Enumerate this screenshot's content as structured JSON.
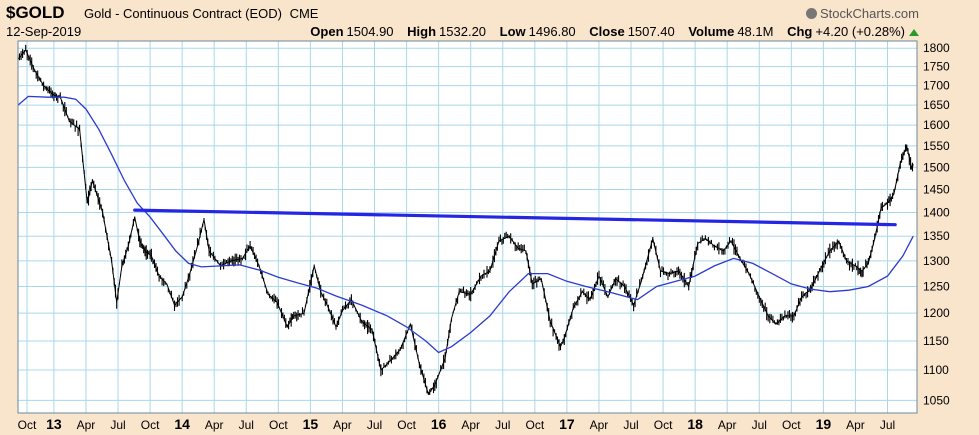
{
  "header": {
    "symbol": "$GOLD",
    "description": "Gold - Continuous Contract (EOD)",
    "exchange": "CME",
    "date": "12-Sep-2019",
    "brand": "StockCharts.com",
    "open_label": "Open",
    "open": "1504.90",
    "high_label": "High",
    "high": "1532.20",
    "low_label": "Low",
    "low": "1496.80",
    "close_label": "Close",
    "close": "1507.40",
    "volume_label": "Volume",
    "volume": "48.1M",
    "chg_label": "Chg",
    "chg": "+4.20 (+0.28%)"
  },
  "colors": {
    "background": "#f9e4cc",
    "plot": "#ffffff",
    "grid": "#a9d8ea",
    "price": "#000000",
    "moving_average": "#2b3bd0",
    "trendline": "#2525e6",
    "up_arrow": "#2a9a2a"
  },
  "chart_data": {
    "type": "line",
    "x_unit": "decimal year",
    "xlim": [
      2012.72,
      2019.73
    ],
    "ylim": [
      1030,
      1820
    ],
    "y_scale": "log",
    "y_ticks": [
      1050,
      1100,
      1150,
      1200,
      1250,
      1300,
      1350,
      1400,
      1450,
      1500,
      1550,
      1600,
      1650,
      1700,
      1750,
      1800
    ],
    "x_ticks": [
      {
        "t": 2012.79,
        "label": "Oct"
      },
      {
        "t": 2013.0,
        "label": "13"
      },
      {
        "t": 2013.25,
        "label": "Apr"
      },
      {
        "t": 2013.5,
        "label": "Jul"
      },
      {
        "t": 2013.75,
        "label": "Oct"
      },
      {
        "t": 2014.0,
        "label": "14"
      },
      {
        "t": 2014.25,
        "label": "Apr"
      },
      {
        "t": 2014.5,
        "label": "Jul"
      },
      {
        "t": 2014.75,
        "label": "Oct"
      },
      {
        "t": 2015.0,
        "label": "15"
      },
      {
        "t": 2015.25,
        "label": "Apr"
      },
      {
        "t": 2015.5,
        "label": "Jul"
      },
      {
        "t": 2015.75,
        "label": "Oct"
      },
      {
        "t": 2016.0,
        "label": "16"
      },
      {
        "t": 2016.25,
        "label": "Apr"
      },
      {
        "t": 2016.5,
        "label": "Jul"
      },
      {
        "t": 2016.75,
        "label": "Oct"
      },
      {
        "t": 2017.0,
        "label": "17"
      },
      {
        "t": 2017.25,
        "label": "Apr"
      },
      {
        "t": 2017.5,
        "label": "Jul"
      },
      {
        "t": 2017.75,
        "label": "Oct"
      },
      {
        "t": 2018.0,
        "label": "18"
      },
      {
        "t": 2018.25,
        "label": "Apr"
      },
      {
        "t": 2018.5,
        "label": "Jul"
      },
      {
        "t": 2018.75,
        "label": "Oct"
      },
      {
        "t": 2019.0,
        "label": "19"
      },
      {
        "t": 2019.25,
        "label": "Apr"
      },
      {
        "t": 2019.5,
        "label": "Jul"
      }
    ],
    "grid": true,
    "series": [
      {
        "type": "price",
        "points": [
          [
            2012.72,
            1770
          ],
          [
            2012.78,
            1795
          ],
          [
            2012.85,
            1740
          ],
          [
            2012.92,
            1700
          ],
          [
            2013.0,
            1675
          ],
          [
            2013.05,
            1670
          ],
          [
            2013.12,
            1610
          ],
          [
            2013.2,
            1590
          ],
          [
            2013.26,
            1420
          ],
          [
            2013.3,
            1470
          ],
          [
            2013.38,
            1400
          ],
          [
            2013.45,
            1300
          ],
          [
            2013.49,
            1220
          ],
          [
            2013.53,
            1290
          ],
          [
            2013.58,
            1330
          ],
          [
            2013.63,
            1390
          ],
          [
            2013.67,
            1340
          ],
          [
            2013.71,
            1320
          ],
          [
            2013.76,
            1310
          ],
          [
            2013.82,
            1270
          ],
          [
            2013.88,
            1255
          ],
          [
            2013.94,
            1215
          ],
          [
            2014.0,
            1230
          ],
          [
            2014.06,
            1275
          ],
          [
            2014.12,
            1330
          ],
          [
            2014.17,
            1385
          ],
          [
            2014.21,
            1320
          ],
          [
            2014.3,
            1290
          ],
          [
            2014.38,
            1300
          ],
          [
            2014.47,
            1305
          ],
          [
            2014.53,
            1330
          ],
          [
            2014.6,
            1290
          ],
          [
            2014.67,
            1235
          ],
          [
            2014.74,
            1220
          ],
          [
            2014.82,
            1175
          ],
          [
            2014.87,
            1195
          ],
          [
            2014.95,
            1200
          ],
          [
            2015.03,
            1290
          ],
          [
            2015.08,
            1240
          ],
          [
            2015.14,
            1210
          ],
          [
            2015.2,
            1175
          ],
          [
            2015.25,
            1205
          ],
          [
            2015.32,
            1225
          ],
          [
            2015.4,
            1185
          ],
          [
            2015.48,
            1170
          ],
          [
            2015.55,
            1100
          ],
          [
            2015.62,
            1115
          ],
          [
            2015.7,
            1135
          ],
          [
            2015.78,
            1180
          ],
          [
            2015.85,
            1110
          ],
          [
            2015.92,
            1060
          ],
          [
            2015.97,
            1075
          ],
          [
            2016.05,
            1120
          ],
          [
            2016.1,
            1190
          ],
          [
            2016.16,
            1240
          ],
          [
            2016.25,
            1235
          ],
          [
            2016.33,
            1270
          ],
          [
            2016.4,
            1280
          ],
          [
            2016.47,
            1340
          ],
          [
            2016.55,
            1350
          ],
          [
            2016.62,
            1325
          ],
          [
            2016.68,
            1320
          ],
          [
            2016.73,
            1255
          ],
          [
            2016.8,
            1265
          ],
          [
            2016.87,
            1185
          ],
          [
            2016.95,
            1140
          ],
          [
            2016.98,
            1155
          ],
          [
            2017.05,
            1210
          ],
          [
            2017.12,
            1240
          ],
          [
            2017.18,
            1225
          ],
          [
            2017.25,
            1270
          ],
          [
            2017.32,
            1230
          ],
          [
            2017.38,
            1265
          ],
          [
            2017.45,
            1250
          ],
          [
            2017.52,
            1215
          ],
          [
            2017.58,
            1260
          ],
          [
            2017.67,
            1345
          ],
          [
            2017.73,
            1280
          ],
          [
            2017.8,
            1275
          ],
          [
            2017.87,
            1280
          ],
          [
            2017.95,
            1250
          ],
          [
            2018.02,
            1335
          ],
          [
            2018.08,
            1345
          ],
          [
            2018.15,
            1330
          ],
          [
            2018.22,
            1320
          ],
          [
            2018.28,
            1340
          ],
          [
            2018.35,
            1305
          ],
          [
            2018.42,
            1275
          ],
          [
            2018.5,
            1230
          ],
          [
            2018.57,
            1195
          ],
          [
            2018.63,
            1180
          ],
          [
            2018.7,
            1195
          ],
          [
            2018.77,
            1195
          ],
          [
            2018.83,
            1230
          ],
          [
            2018.9,
            1245
          ],
          [
            2018.97,
            1280
          ],
          [
            2019.05,
            1320
          ],
          [
            2019.12,
            1340
          ],
          [
            2019.18,
            1300
          ],
          [
            2019.25,
            1290
          ],
          [
            2019.3,
            1280
          ],
          [
            2019.35,
            1295
          ],
          [
            2019.4,
            1345
          ],
          [
            2019.45,
            1410
          ],
          [
            2019.5,
            1420
          ],
          [
            2019.55,
            1440
          ],
          [
            2019.6,
            1510
          ],
          [
            2019.65,
            1550
          ],
          [
            2019.69,
            1495
          ],
          [
            2019.7,
            1507
          ]
        ]
      },
      {
        "type": "moving_average",
        "points": [
          [
            2012.72,
            1650
          ],
          [
            2012.8,
            1672
          ],
          [
            2012.95,
            1670
          ],
          [
            2013.08,
            1670
          ],
          [
            2013.17,
            1665
          ],
          [
            2013.25,
            1640
          ],
          [
            2013.35,
            1590
          ],
          [
            2013.45,
            1530
          ],
          [
            2013.55,
            1470
          ],
          [
            2013.65,
            1420
          ],
          [
            2013.75,
            1390
          ],
          [
            2013.85,
            1355
          ],
          [
            2013.95,
            1320
          ],
          [
            2014.05,
            1295
          ],
          [
            2014.15,
            1288
          ],
          [
            2014.3,
            1290
          ],
          [
            2014.45,
            1292
          ],
          [
            2014.6,
            1282
          ],
          [
            2014.75,
            1268
          ],
          [
            2014.9,
            1257
          ],
          [
            2015.05,
            1247
          ],
          [
            2015.2,
            1232
          ],
          [
            2015.4,
            1215
          ],
          [
            2015.6,
            1195
          ],
          [
            2015.75,
            1175
          ],
          [
            2015.9,
            1150
          ],
          [
            2016.0,
            1130
          ],
          [
            2016.1,
            1140
          ],
          [
            2016.25,
            1165
          ],
          [
            2016.4,
            1195
          ],
          [
            2016.55,
            1240
          ],
          [
            2016.7,
            1275
          ],
          [
            2016.85,
            1275
          ],
          [
            2017.0,
            1260
          ],
          [
            2017.15,
            1250
          ],
          [
            2017.35,
            1238
          ],
          [
            2017.55,
            1225
          ],
          [
            2017.7,
            1250
          ],
          [
            2017.85,
            1260
          ],
          [
            2018.0,
            1270
          ],
          [
            2018.15,
            1290
          ],
          [
            2018.3,
            1305
          ],
          [
            2018.45,
            1295
          ],
          [
            2018.6,
            1275
          ],
          [
            2018.75,
            1255
          ],
          [
            2018.9,
            1245
          ],
          [
            2019.05,
            1240
          ],
          [
            2019.2,
            1243
          ],
          [
            2019.35,
            1250
          ],
          [
            2019.5,
            1270
          ],
          [
            2019.62,
            1310
          ],
          [
            2019.7,
            1350
          ]
        ]
      },
      {
        "type": "trendline",
        "points": [
          [
            2013.63,
            1405
          ],
          [
            2019.56,
            1374
          ]
        ]
      }
    ]
  }
}
